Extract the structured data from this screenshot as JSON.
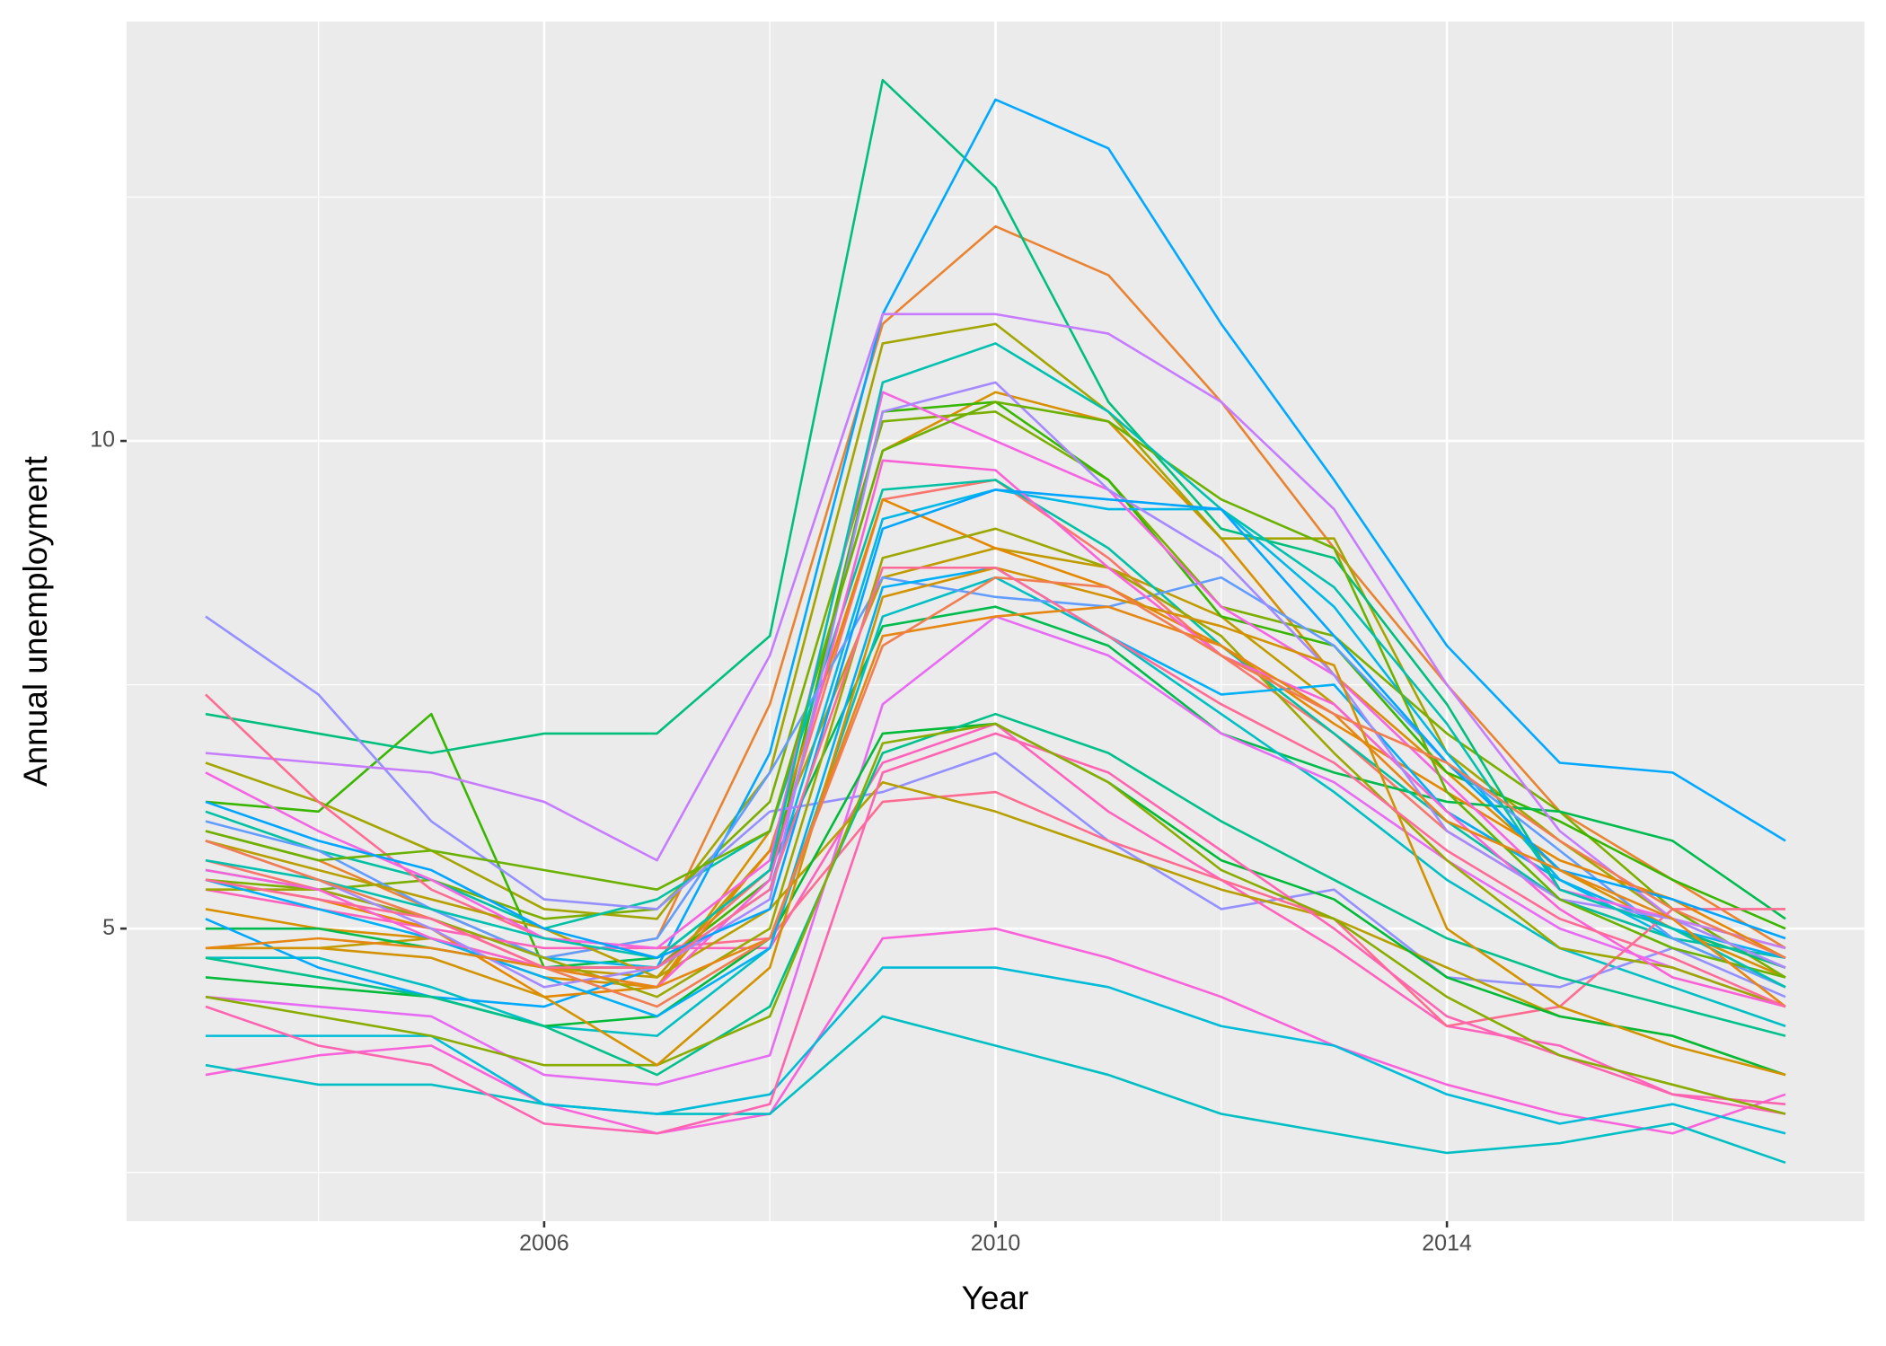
{
  "chart_data": {
    "type": "line",
    "x_label": "Year",
    "y_label": "Annual unemployment",
    "x": [
      2003,
      2004,
      2005,
      2006,
      2007,
      2008,
      2009,
      2010,
      2011,
      2012,
      2013,
      2014,
      2015,
      2016,
      2017
    ],
    "xlim": [
      2002.3,
      2017.7
    ],
    "ylim": [
      2.0,
      14.3
    ],
    "xticks": [
      2006,
      2010,
      2014
    ],
    "yticks": [
      5,
      10
    ],
    "minor_xticks": [
      2004,
      2008,
      2012,
      2016
    ],
    "minor_yticks": [
      2.5,
      7.5,
      12.5
    ],
    "grid": true,
    "series": [
      {
        "color": "#F8766D",
        "values": [
          5.7,
          5.4,
          5.1,
          4.6,
          4.6,
          5.6,
          9.4,
          9.6,
          8.8,
          7.8,
          7.0,
          6.0,
          5.3,
          4.9,
          4.4
        ]
      },
      {
        "color": "#EA8331",
        "values": [
          6.0,
          5.7,
          5.2,
          4.7,
          4.9,
          7.3,
          11.2,
          12.2,
          11.7,
          10.4,
          8.9,
          7.5,
          6.2,
          5.5,
          4.8
        ]
      },
      {
        "color": "#D89000",
        "values": [
          5.2,
          5.0,
          4.9,
          4.5,
          4.4,
          6.0,
          9.9,
          10.5,
          10.2,
          9.0,
          7.6,
          6.6,
          5.6,
          5.0,
          4.5
        ]
      },
      {
        "color": "#C09B00",
        "values": [
          4.8,
          4.8,
          4.9,
          4.6,
          4.5,
          5.8,
          8.6,
          8.9,
          8.7,
          8.2,
          7.3,
          6.2,
          5.5,
          5.0,
          4.6
        ]
      },
      {
        "color": "#A3A500",
        "values": [
          6.7,
          6.3,
          5.8,
          5.2,
          5.1,
          6.6,
          11.0,
          11.2,
          10.3,
          9.0,
          9.0,
          6.8,
          5.9,
          5.1,
          4.8
        ]
      },
      {
        "color": "#7CAE00",
        "values": [
          5.5,
          5.4,
          5.5,
          5.1,
          5.2,
          6.3,
          10.2,
          10.3,
          9.6,
          8.3,
          8.0,
          7.0,
          6.2,
          5.2,
          4.5
        ]
      },
      {
        "color": "#39B600",
        "values": [
          6.3,
          6.2,
          7.2,
          4.6,
          4.6,
          5.5,
          10.3,
          10.4,
          9.6,
          8.2,
          7.9,
          6.6,
          6.1,
          5.5,
          5.0
        ]
      },
      {
        "color": "#00BB4E",
        "values": [
          5.0,
          5.0,
          4.8,
          4.6,
          4.7,
          5.6,
          8.1,
          8.3,
          7.9,
          7.0,
          6.6,
          6.3,
          6.2,
          5.9,
          5.1
        ]
      },
      {
        "color": "#00BF7D",
        "values": [
          7.2,
          7.0,
          6.8,
          7.0,
          7.0,
          8.0,
          13.7,
          12.6,
          10.4,
          9.1,
          8.8,
          7.3,
          5.4,
          5.0,
          4.6
        ]
      },
      {
        "color": "#00C1A3",
        "values": [
          6.2,
          5.8,
          5.5,
          5.0,
          5.3,
          6.0,
          9.5,
          9.6,
          8.9,
          7.9,
          7.0,
          6.1,
          5.3,
          4.9,
          4.7
        ]
      },
      {
        "color": "#00BFC4",
        "values": [
          4.7,
          4.7,
          4.4,
          4.0,
          3.9,
          4.8,
          8.2,
          8.6,
          8.0,
          7.2,
          6.4,
          5.5,
          4.8,
          4.4,
          4.0
        ]
      },
      {
        "color": "#00B8E7",
        "values": [
          5.6,
          5.4,
          5.1,
          4.7,
          4.6,
          5.4,
          9.2,
          9.5,
          9.3,
          9.3,
          8.3,
          6.8,
          5.5,
          4.9,
          4.4
        ]
      },
      {
        "color": "#00A9FF",
        "values": [
          5.1,
          4.6,
          4.3,
          4.2,
          4.6,
          6.8,
          11.3,
          13.5,
          13.0,
          11.2,
          9.6,
          7.9,
          6.7,
          6.6,
          5.9
        ]
      },
      {
        "color": "#619CFF",
        "values": [
          6.1,
          5.8,
          5.2,
          4.7,
          4.9,
          6.6,
          8.6,
          8.4,
          8.3,
          8.6,
          7.9,
          6.7,
          5.8,
          4.9,
          4.4
        ]
      },
      {
        "color": "#9590FF",
        "values": [
          8.2,
          7.4,
          6.1,
          5.3,
          5.2,
          6.2,
          6.4,
          6.8,
          5.9,
          5.2,
          5.4,
          4.5,
          4.4,
          4.8,
          4.3
        ]
      },
      {
        "color": "#C77CFF",
        "values": [
          6.8,
          6.7,
          6.6,
          6.3,
          5.7,
          7.8,
          11.3,
          11.3,
          11.1,
          10.4,
          9.3,
          7.5,
          6.0,
          5.1,
          4.8
        ]
      },
      {
        "color": "#E76BF3",
        "values": [
          4.3,
          4.2,
          4.1,
          3.5,
          3.4,
          3.7,
          7.3,
          8.2,
          7.8,
          7.0,
          6.5,
          5.7,
          5.0,
          4.6,
          4.2
        ]
      },
      {
        "color": "#FA62DB",
        "values": [
          3.5,
          3.7,
          3.8,
          3.2,
          2.9,
          3.1,
          4.9,
          5.0,
          4.7,
          4.3,
          3.8,
          3.4,
          3.1,
          2.9,
          3.3
        ]
      },
      {
        "color": "#FF62BC",
        "values": [
          5.4,
          5.2,
          5.0,
          4.8,
          4.8,
          4.8,
          6.7,
          7.1,
          6.2,
          5.5,
          4.8,
          4.0,
          3.8,
          3.3,
          3.1
        ]
      },
      {
        "color": "#FF6C91",
        "values": [
          7.4,
          6.3,
          5.4,
          4.9,
          4.8,
          4.9,
          6.3,
          6.4,
          5.9,
          5.5,
          5.1,
          4.0,
          4.2,
          5.2,
          5.2
        ]
      },
      {
        "color": "#00BFC4",
        "values": [
          3.6,
          3.4,
          3.4,
          3.2,
          3.1,
          3.1,
          4.1,
          3.8,
          3.5,
          3.1,
          2.9,
          2.7,
          2.8,
          3.0,
          2.6
        ]
      },
      {
        "color": "#00BCD8",
        "values": [
          3.9,
          3.9,
          3.9,
          3.2,
          3.1,
          3.3,
          4.6,
          4.6,
          4.4,
          4.0,
          3.8,
          3.3,
          3.0,
          3.2,
          2.9
        ]
      },
      {
        "color": "#E58700",
        "values": [
          5.5,
          5.3,
          5.0,
          4.3,
          4.4,
          5.8,
          9.4,
          8.9,
          8.5,
          7.9,
          7.1,
          6.4,
          5.7,
          5.3,
          4.7
        ]
      },
      {
        "color": "#B79F00",
        "values": [
          5.9,
          5.6,
          5.3,
          5.0,
          4.5,
          5.2,
          6.5,
          6.2,
          5.8,
          5.4,
          5.1,
          4.6,
          4.1,
          3.9,
          3.5
        ]
      },
      {
        "color": "#9CA700",
        "values": [
          5.4,
          5.4,
          5.1,
          4.7,
          4.3,
          5.0,
          8.8,
          9.1,
          8.7,
          8.0,
          6.8,
          5.7,
          4.8,
          4.6,
          4.2
        ]
      },
      {
        "color": "#00BA38",
        "values": [
          4.5,
          4.4,
          4.3,
          4.0,
          4.1,
          4.9,
          7.0,
          7.1,
          6.5,
          5.7,
          5.3,
          4.5,
          4.1,
          3.9,
          3.5
        ]
      },
      {
        "color": "#00C08B",
        "values": [
          4.7,
          4.5,
          4.3,
          4.0,
          3.5,
          4.2,
          6.8,
          7.2,
          6.8,
          6.1,
          5.5,
          4.9,
          4.5,
          4.2,
          3.9
        ]
      },
      {
        "color": "#00B0F6",
        "values": [
          5.5,
          5.2,
          4.9,
          4.5,
          4.1,
          4.8,
          8.5,
          8.7,
          8.0,
          7.4,
          7.5,
          6.2,
          5.5,
          5.0,
          4.7
        ]
      },
      {
        "color": "#F564E3",
        "values": [
          6.6,
          6.0,
          5.5,
          4.9,
          4.8,
          5.7,
          10.5,
          10.0,
          9.5,
          8.3,
          7.6,
          6.5,
          5.4,
          5.1,
          4.6
        ]
      },
      {
        "color": "#FF64B0",
        "values": [
          4.2,
          3.8,
          3.6,
          3.0,
          2.9,
          3.2,
          6.6,
          7.0,
          6.6,
          5.8,
          5.0,
          4.1,
          3.7,
          3.3,
          3.2
        ]
      },
      {
        "color": "#FB61D7",
        "values": [
          5.6,
          5.4,
          4.9,
          4.6,
          4.4,
          5.5,
          9.8,
          9.7,
          8.7,
          7.8,
          7.3,
          6.2,
          5.2,
          4.5,
          4.2
        ]
      },
      {
        "color": "#A58AFF",
        "values": [
          5.9,
          5.5,
          5.0,
          4.4,
          4.6,
          5.3,
          10.3,
          10.6,
          9.5,
          8.8,
          7.6,
          6.0,
          5.3,
          5.1,
          4.6
        ]
      },
      {
        "color": "#6BB100",
        "values": [
          6.0,
          5.7,
          5.8,
          5.6,
          5.4,
          6.0,
          9.9,
          10.4,
          10.2,
          9.4,
          8.9,
          6.4,
          5.3,
          4.8,
          4.5
        ]
      },
      {
        "color": "#00C0AF",
        "values": [
          5.7,
          5.5,
          5.2,
          4.9,
          4.7,
          5.6,
          10.6,
          11.0,
          10.3,
          9.3,
          8.5,
          7.1,
          5.4,
          5.0,
          4.4
        ]
      },
      {
        "color": "#8AAB00",
        "values": [
          4.3,
          4.1,
          3.9,
          3.6,
          3.6,
          4.1,
          6.9,
          7.1,
          6.5,
          5.6,
          5.1,
          4.3,
          3.7,
          3.4,
          3.1
        ]
      },
      {
        "color": "#D39200",
        "values": [
          4.8,
          4.8,
          4.7,
          4.3,
          3.6,
          4.6,
          8.4,
          8.7,
          8.4,
          8.1,
          7.7,
          5.0,
          4.2,
          3.8,
          3.5
        ]
      },
      {
        "color": "#00A5FF",
        "values": [
          6.3,
          5.9,
          5.6,
          5.0,
          4.7,
          5.2,
          9.1,
          9.5,
          9.4,
          9.3,
          8.0,
          6.7,
          5.6,
          5.3,
          4.9
        ]
      },
      {
        "color": "#E68613",
        "values": [
          4.8,
          4.9,
          4.8,
          4.6,
          4.4,
          4.9,
          8.0,
          8.2,
          8.3,
          7.9,
          7.2,
          6.1,
          5.6,
          5.1,
          4.2
        ]
      },
      {
        "color": "#F17D50",
        "values": [
          5.9,
          5.5,
          5.1,
          4.6,
          4.2,
          4.9,
          7.9,
          8.6,
          8.5,
          7.8,
          7.2,
          6.7,
          5.9,
          5.2,
          4.7
        ]
      },
      {
        "color": "#FF6A98",
        "values": [
          5.5,
          5.3,
          5.1,
          4.6,
          4.6,
          5.4,
          8.7,
          8.7,
          8.0,
          7.3,
          6.7,
          5.8,
          5.1,
          4.7,
          4.2
        ]
      }
    ]
  }
}
